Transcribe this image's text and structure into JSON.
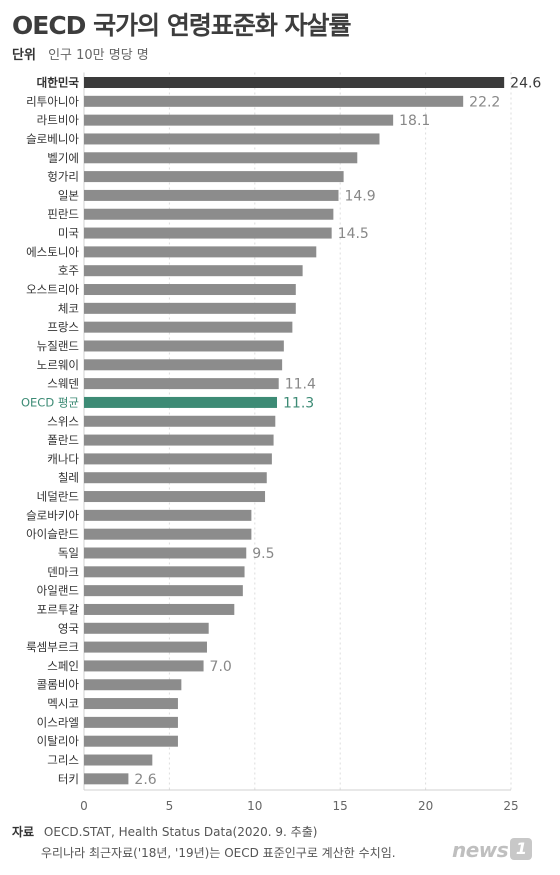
{
  "header": {
    "title": "OECD 국가의 연령표준화 자살률",
    "unit_label": "단위",
    "unit_value": "인구 10만 명당 명"
  },
  "colors": {
    "highlight": "#3b3b3b",
    "average": "#3d8b75",
    "bar": "#8c8c8c",
    "axis": "#d0d0d0",
    "grid": "#dddddd",
    "tick": "#666666",
    "label": "#333333"
  },
  "chart_data": {
    "type": "bar",
    "orientation": "horizontal",
    "title": "OECD 국가의 연령표준화 자살률",
    "xlabel": "",
    "ylabel": "",
    "xlim": [
      0,
      25
    ],
    "xticks": [
      0,
      5,
      10,
      15,
      20,
      25
    ],
    "grid": "vertical-dashed",
    "categories": [
      "대한민국",
      "리투아니아",
      "라트비아",
      "슬로베니아",
      "벨기에",
      "헝가리",
      "일본",
      "핀란드",
      "미국",
      "에스토니아",
      "호주",
      "오스트리아",
      "체코",
      "프랑스",
      "뉴질랜드",
      "노르웨이",
      "스웨덴",
      "OECD 평균",
      "스위스",
      "폴란드",
      "캐나다",
      "칠레",
      "네덜란드",
      "슬로바키아",
      "아이슬란드",
      "독일",
      "덴마크",
      "아일랜드",
      "포르투갈",
      "영국",
      "룩셈부르크",
      "스페인",
      "콜롬비아",
      "멕시코",
      "이스라엘",
      "이탈리아",
      "그리스",
      "터키"
    ],
    "values": [
      24.6,
      22.2,
      18.1,
      17.3,
      16.0,
      15.2,
      14.9,
      14.6,
      14.5,
      13.6,
      12.8,
      12.4,
      12.4,
      12.2,
      11.7,
      11.6,
      11.4,
      11.3,
      11.2,
      11.1,
      11.0,
      10.7,
      10.6,
      9.8,
      9.8,
      9.5,
      9.4,
      9.3,
      8.8,
      7.3,
      7.2,
      7.0,
      5.7,
      5.5,
      5.5,
      5.5,
      4.0,
      2.6
    ],
    "data_labels": {
      "대한민국": "24.6",
      "리투아니아": "22.2",
      "라트비아": "18.1",
      "일본": "14.9",
      "미국": "14.5",
      "스웨덴": "11.4",
      "OECD 평균": "11.3",
      "독일": "9.5",
      "스페인": "7.0",
      "터키": "2.6"
    },
    "highlight_category": "대한민국",
    "average_category": "OECD 평균"
  },
  "footer": {
    "source_label": "자료",
    "source_text": "OECD.STAT, Health Status Data(2020. 9. 추출)",
    "note": "우리나라 최근자료('18년, '19년)는 OECD 표준인구로 계산한 수치임."
  },
  "logo": {
    "text": "news",
    "badge": "1"
  }
}
